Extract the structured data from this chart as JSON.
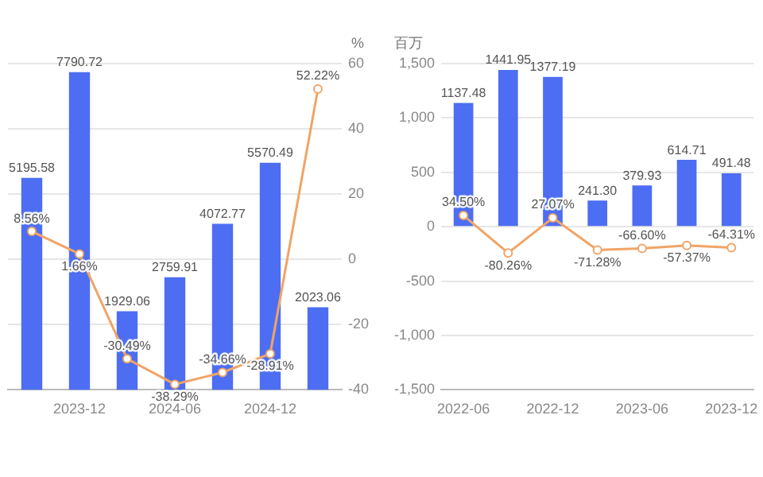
{
  "chart_data": [
    {
      "type": "bar",
      "categories": [
        null,
        "2023-12",
        null,
        "2024-06",
        null,
        "2024-12",
        null
      ],
      "y2label": "%",
      "ylim": [
        0,
        8000
      ],
      "y2lim": [
        -40,
        60
      ],
      "y2ticks": [
        -40,
        -20,
        0,
        20,
        40,
        60
      ],
      "grid": "y",
      "legend": false,
      "marker": "circle",
      "series": [
        {
          "color": "#4d6ef2",
          "values": [
            5195.58,
            7790.72,
            1929.06,
            2759.91,
            4072.77,
            5570.49,
            2023.06
          ],
          "value_labels": [
            "5195.58",
            "7790.72",
            "1929.06",
            "2759.91",
            "4072.77",
            "5570.49",
            "2023.06"
          ]
        },
        {
          "type": "line",
          "axis": "y2",
          "color": "#f0a466",
          "values": [
            8.56,
            1.66,
            -30.49,
            -38.29,
            -34.66,
            -28.91,
            52.22
          ],
          "value_labels": [
            "8.56%",
            "1.66%",
            "-30.49%",
            "-38.29%",
            "-34.66%",
            "-28.91%",
            "52.22%"
          ]
        }
      ]
    },
    {
      "type": "bar",
      "categories": [
        "2022-06",
        null,
        "2022-12",
        null,
        "2023-06",
        null,
        "2023-12"
      ],
      "ylabel": "百万",
      "ylim": [
        -1500,
        1500
      ],
      "yticks": [
        {
          "value": -1500,
          "label": "-1,500"
        },
        {
          "value": -1000,
          "label": "-1,000"
        },
        -500,
        0,
        500,
        {
          "value": 1000,
          "label": "1,000"
        },
        {
          "value": 1500,
          "label": "1,500"
        }
      ],
      "y2lim": [
        -500,
        500
      ],
      "grid": "y",
      "legend": false,
      "marker": "circle",
      "series": [
        {
          "color": "#4d6ef2",
          "values": [
            1137.48,
            1441.95,
            1377.19,
            241.3,
            379.93,
            614.71,
            491.48
          ],
          "value_labels": [
            "1137.48",
            "1441.95",
            "1377.19",
            "241.30",
            "379.93",
            "614.71",
            "491.48"
          ]
        },
        {
          "type": "line",
          "axis": "y2",
          "color": "#f0a466",
          "values": [
            34.5,
            -80.26,
            27.07,
            -71.28,
            -66.6,
            -57.37,
            -64.31
          ],
          "value_labels": [
            "34.50%",
            "-80.26%",
            "27.07%",
            "-71.28%",
            "-66.60%",
            "-57.37%",
            "-64.31%"
          ]
        }
      ]
    }
  ]
}
